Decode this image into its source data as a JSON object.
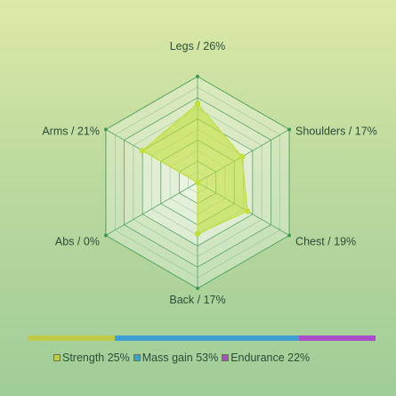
{
  "chart_data": {
    "type": "radar",
    "categories": [
      "Legs",
      "Shoulders",
      "Chest",
      "Back",
      "Abs",
      "Arms"
    ],
    "values": [
      26,
      17,
      19,
      17,
      0,
      21
    ],
    "labels": [
      "Legs / 26%",
      "Shoulders / 17%",
      "Chest / 19%",
      "Back / 17%",
      "Abs / 0%",
      "Arms / 21%"
    ],
    "rmax": 35,
    "rings": 5,
    "grid": true,
    "series_color": "#c2e03a",
    "grid_color": "#3f9a56"
  },
  "split": {
    "segments": [
      {
        "name": "Strength",
        "value": 25,
        "color": "#c1cc45",
        "label": "Strength 25%"
      },
      {
        "name": "Mass gain",
        "value": 53,
        "color": "#3f9fd0",
        "label": "Mass gain 53%"
      },
      {
        "name": "Endurance",
        "value": 22,
        "color": "#a84fc8",
        "label": "Endurance 22%"
      }
    ]
  }
}
